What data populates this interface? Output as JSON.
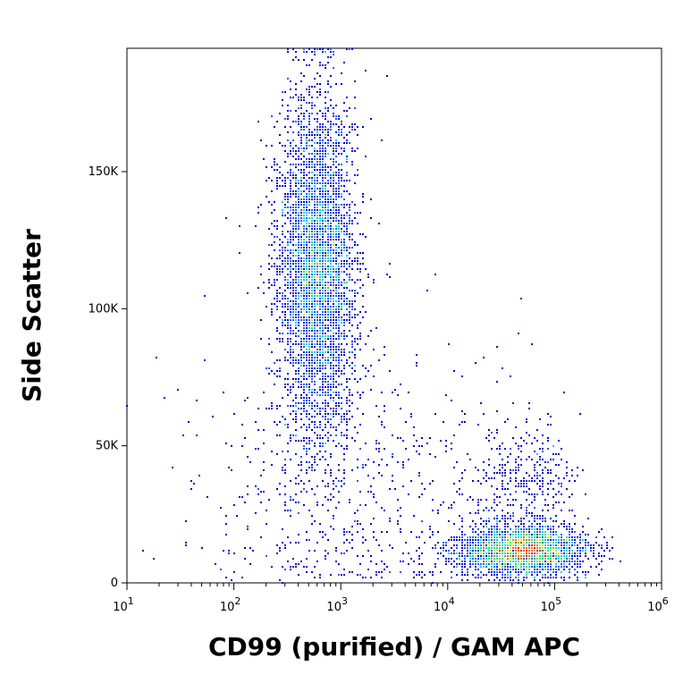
{
  "chart_data": {
    "type": "scatter",
    "subtype": "flow-cytometry-density-dot-plot",
    "xlabel": "CD99 (purified) / GAM APC",
    "ylabel": "Side Scatter",
    "x_scale": "log",
    "xlim": [
      10,
      1000000
    ],
    "ylim": [
      0,
      195000
    ],
    "x_ticks": [
      {
        "value": 10,
        "base": "10",
        "exp": "1"
      },
      {
        "value": 100,
        "base": "10",
        "exp": "2"
      },
      {
        "value": 1000,
        "base": "10",
        "exp": "3"
      },
      {
        "value": 10000,
        "base": "10",
        "exp": "4"
      },
      {
        "value": 100000,
        "base": "10",
        "exp": "5"
      },
      {
        "value": 1000000,
        "base": "10",
        "exp": "6"
      }
    ],
    "y_ticks": [
      {
        "value": 0,
        "label": "0"
      },
      {
        "value": 50000,
        "label": "50K"
      },
      {
        "value": 100000,
        "label": "100K"
      },
      {
        "value": 150000,
        "label": "150K"
      }
    ],
    "grid": false,
    "legend": "none",
    "density_colors": [
      "#0000cc",
      "#1e5bff",
      "#00c8ff",
      "#00e08a",
      "#f0e000",
      "#ff6000",
      "#e00000"
    ],
    "populations": [
      {
        "x_center": 600,
        "x_log_sd": 0.18,
        "y_center": 115000,
        "y_sd": 32000,
        "count": 4200,
        "y_max": 195000
      },
      {
        "x_center": 50000,
        "x_log_sd": 0.3,
        "y_center": 12000,
        "y_sd": 4500,
        "count": 2600
      },
      {
        "x_center": 55000,
        "x_log_sd": 0.25,
        "y_center": 38000,
        "y_sd": 11000,
        "count": 320
      },
      {
        "x_center": 1500,
        "x_log_sd": 0.75,
        "y_center": 35000,
        "y_sd": 30000,
        "count": 650
      }
    ]
  }
}
